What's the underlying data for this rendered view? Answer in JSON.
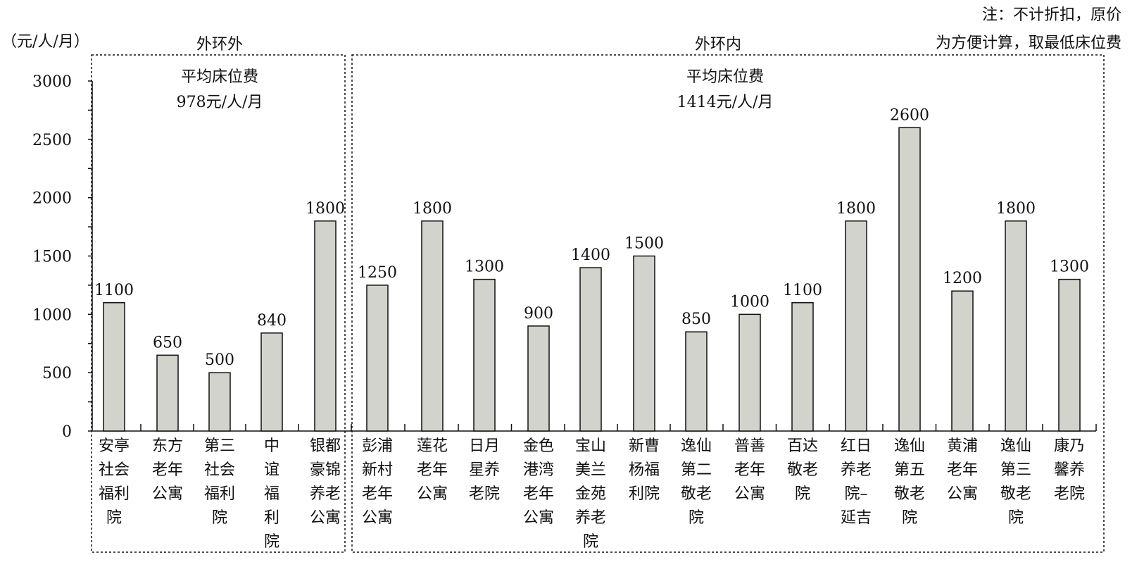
{
  "chart_data": {
    "type": "bar",
    "unit_label": "（元/人/月）",
    "note_lines": [
      "注：不计折扣，原价",
      "为方便计算，取最低床位费"
    ],
    "ylim": [
      0,
      3000
    ],
    "yticks": [
      0,
      500,
      1000,
      1500,
      2000,
      2500,
      3000
    ],
    "bar_color": "#d2d3cc",
    "groups": [
      {
        "name": "外环外",
        "avg_lines": [
          "平均床位费",
          "978元/人/月"
        ],
        "start": 0,
        "end": 4
      },
      {
        "name": "外环内",
        "avg_lines": [
          "平均床位费",
          "1414元/人/月"
        ],
        "start": 5,
        "end": 18
      }
    ],
    "categories": [
      [
        "安亭",
        "社会",
        "福利",
        "院"
      ],
      [
        "东方",
        "老年",
        "公寓"
      ],
      [
        "第三",
        "社会",
        "福利",
        "院"
      ],
      [
        "中",
        "谊",
        "福",
        "利",
        "院"
      ],
      [
        "银都",
        "豪锦",
        "养老",
        "公寓"
      ],
      [
        "彭浦",
        "新村",
        "老年",
        "公寓"
      ],
      [
        "莲花",
        "老年",
        "公寓"
      ],
      [
        "日月",
        "星养",
        "老院"
      ],
      [
        "金色",
        "港湾",
        "老年",
        "公寓"
      ],
      [
        "宝山",
        "美兰",
        "金苑",
        "养老",
        "院"
      ],
      [
        "新曹",
        "杨福",
        "利院"
      ],
      [
        "逸仙",
        "第二",
        "敬老",
        "院"
      ],
      [
        "普善",
        "老年",
        "公寓"
      ],
      [
        "百达",
        "敬老",
        "院"
      ],
      [
        "红日",
        "养老",
        "院–",
        "延吉"
      ],
      [
        "逸仙",
        "第五",
        "敬老",
        "院"
      ],
      [
        "黄浦",
        "老年",
        "公寓"
      ],
      [
        "逸仙",
        "第三",
        "敬老",
        "院"
      ],
      [
        "康乃",
        "馨养",
        "老院"
      ]
    ],
    "values": [
      1100,
      650,
      500,
      840,
      1800,
      1250,
      1800,
      1300,
      900,
      1400,
      1500,
      850,
      1000,
      1100,
      1800,
      2600,
      1200,
      1800,
      1300
    ],
    "value_labels": [
      "1100",
      "650",
      "500",
      "840",
      "1800",
      "1250",
      "1800",
      "1300",
      "900",
      "1400",
      "1500",
      "850",
      "1000",
      "1100",
      "1800",
      "2600",
      "1200",
      "1800",
      "1300"
    ]
  }
}
